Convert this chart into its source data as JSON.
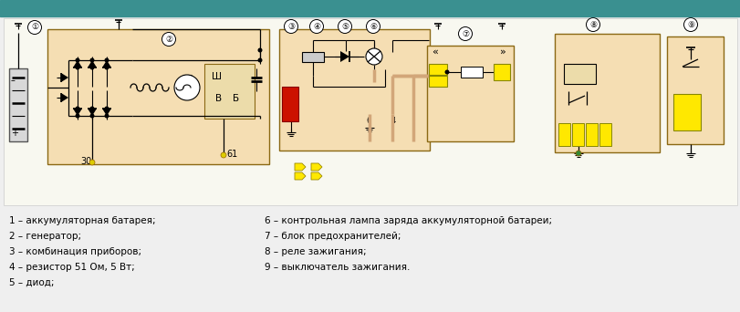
{
  "bg_color": "#efefef",
  "teal_color": "#3a9090",
  "diagram_bg": "#f5deb3",
  "pink": "#ffb6c1",
  "brown": "#8B5A2B",
  "cream": "#d2a679",
  "cyan": "#00d4d4",
  "yellow": "#FFE800",
  "red_box": "#cc1100",
  "legend_lines": [
    [
      "1 – аккумуляторная батарея;",
      "6 – контрольная лампа заряда аккумуляторной батареи;"
    ],
    [
      "2 – генератор;",
      "7 – блок предохранителей;"
    ],
    [
      "3 – комбинация приборов;",
      "8 – реле зажигания;"
    ],
    [
      "4 – резистор 51 Ом, 5 Вт;",
      "9 – выключатель зажигания."
    ],
    [
      "5 – диод;",
      ""
    ]
  ]
}
